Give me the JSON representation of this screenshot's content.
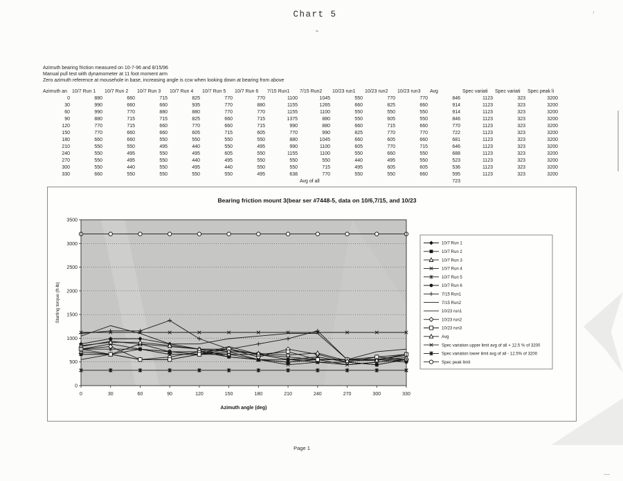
{
  "page": {
    "title": "Chart 5",
    "page_label": "Page 1"
  },
  "notes": [
    "Azimuth bearing friction measured on 10-7-96 and 8/15/96",
    "Manual pull test with dynamometer at 11 foot moment arm",
    "Zero azimuth reference at mousehole in base, increasing angle is ccw when looking down at bearing from above"
  ],
  "table": {
    "headers": [
      "Azimuth an",
      "10/7 Run 1",
      "10/7 Run 2",
      "10/7 Run 3",
      "10/7 Run 4",
      "10/7 Run 5",
      "10/7 Run 6",
      "7/15 Run1",
      "7/15 Run2",
      "10/23 run1",
      "10/23 run2",
      "10/23 run3",
      "Avg",
      "Spec variati",
      "Spec variati",
      "Spec peak li"
    ],
    "rows": [
      [
        0,
        880,
        660,
        715,
        825,
        770,
        770,
        1100,
        1045,
        550,
        770,
        770,
        846,
        1123,
        323,
        3200
      ],
      [
        30,
        990,
        660,
        660,
        935,
        770,
        880,
        1155,
        1265,
        660,
        825,
        660,
        914,
        1123,
        323,
        3200
      ],
      [
        60,
        990,
        770,
        880,
        880,
        770,
        770,
        1155,
        1100,
        550,
        550,
        550,
        914,
        1123,
        323,
        3200
      ],
      [
        90,
        880,
        715,
        715,
        825,
        660,
        715,
        1375,
        880,
        550,
        605,
        550,
        846,
        1123,
        323,
        3200
      ],
      [
        120,
        770,
        715,
        660,
        770,
        660,
        715,
        990,
        880,
        660,
        715,
        660,
        770,
        1123,
        323,
        3200
      ],
      [
        150,
        770,
        660,
        660,
        605,
        715,
        605,
        770,
        990,
        825,
        770,
        770,
        722,
        1123,
        323,
        3200
      ],
      [
        180,
        660,
        660,
        550,
        550,
        550,
        550,
        880,
        1045,
        660,
        605,
        660,
        681,
        1123,
        323,
        3200
      ],
      [
        210,
        550,
        550,
        495,
        440,
        550,
        495,
        990,
        1100,
        605,
        770,
        715,
        646,
        1123,
        323,
        3200
      ],
      [
        240,
        550,
        495,
        550,
        495,
        605,
        550,
        1155,
        1100,
        550,
        660,
        550,
        688,
        1123,
        323,
        3200
      ],
      [
        270,
        550,
        495,
        550,
        440,
        495,
        550,
        550,
        550,
        440,
        495,
        550,
        523,
        1123,
        323,
        3200
      ],
      [
        300,
        550,
        440,
        550,
        495,
        440,
        550,
        550,
        715,
        495,
        605,
        605,
        536,
        1123,
        323,
        3200
      ],
      [
        330,
        660,
        550,
        550,
        550,
        550,
        495,
        638,
        770,
        550,
        550,
        660,
        595,
        1123,
        323,
        3200
      ]
    ],
    "footer_row": [
      "",
      "",
      "",
      "",
      "",
      "",
      "",
      "",
      "Avg of all",
      "",
      "",
      "",
      "723",
      "",
      "",
      ""
    ]
  },
  "chart_data": {
    "type": "line",
    "title": "Bearing friction mount 3(bear ser #7448-5, data on 10/6,7/15, and 10/23",
    "xlabel": "Azimuth angle (deg)",
    "ylabel": "Starting torque (ft-lb)",
    "x": [
      0,
      30,
      60,
      90,
      120,
      150,
      180,
      210,
      240,
      270,
      300,
      330
    ],
    "ylim": [
      0,
      3500
    ],
    "yticks": [
      0,
      500,
      1000,
      1500,
      2000,
      2500,
      3000,
      3500
    ],
    "grid": "dotted-horizontal",
    "plot_bg": "#c6c6c4",
    "line_color": "#161616",
    "legend_position": "right",
    "series": [
      {
        "name": "10/7 Run 1",
        "marker": "filled-diamond",
        "values": [
          880,
          990,
          990,
          880,
          770,
          770,
          660,
          550,
          550,
          550,
          550,
          660
        ]
      },
      {
        "name": "10/7 Run 2",
        "marker": "filled-square",
        "values": [
          660,
          660,
          770,
          715,
          715,
          660,
          660,
          550,
          495,
          495,
          440,
          550
        ]
      },
      {
        "name": "10/7 Run 3",
        "marker": "open-triangle",
        "values": [
          715,
          660,
          880,
          715,
          660,
          660,
          550,
          495,
          550,
          550,
          550,
          550
        ]
      },
      {
        "name": "10/7 Run 4",
        "marker": "x",
        "values": [
          825,
          935,
          880,
          825,
          770,
          605,
          550,
          440,
          495,
          440,
          495,
          550
        ]
      },
      {
        "name": "10/7 Run 5",
        "marker": "asterisk",
        "values": [
          770,
          770,
          770,
          660,
          660,
          715,
          550,
          550,
          605,
          495,
          440,
          550
        ]
      },
      {
        "name": "10/7 Run 6",
        "marker": "filled-circle",
        "values": [
          770,
          880,
          770,
          715,
          715,
          605,
          550,
          495,
          550,
          550,
          550,
          495
        ]
      },
      {
        "name": "7/15 Run1",
        "marker": "plus",
        "values": [
          1100,
          1155,
          1155,
          1375,
          990,
          770,
          880,
          990,
          1155,
          550,
          550,
          638
        ]
      },
      {
        "name": "7/15 Run2",
        "marker": "dash",
        "values": [
          1045,
          1265,
          1100,
          880,
          880,
          990,
          1045,
          1100,
          1100,
          550,
          715,
          770
        ]
      },
      {
        "name": "10/23 run1",
        "marker": "dash",
        "values": [
          550,
          660,
          550,
          550,
          660,
          825,
          660,
          605,
          550,
          440,
          495,
          550
        ]
      },
      {
        "name": "10/23 run2",
        "marker": "open-diamond",
        "values": [
          770,
          825,
          550,
          605,
          715,
          770,
          605,
          770,
          660,
          495,
          605,
          550
        ]
      },
      {
        "name": "10/23 run3",
        "marker": "open-square",
        "values": [
          770,
          660,
          550,
          550,
          660,
          770,
          660,
          715,
          550,
          550,
          605,
          660
        ]
      },
      {
        "name": "Avg",
        "marker": "open-triangle",
        "values": [
          846,
          914,
          914,
          846,
          770,
          722,
          681,
          646,
          688,
          523,
          536,
          595
        ]
      },
      {
        "name": "Spec variation upper limit avg of all + 12.5 % of 3200",
        "marker": "x",
        "values": [
          1123,
          1123,
          1123,
          1123,
          1123,
          1123,
          1123,
          1123,
          1123,
          1123,
          1123,
          1123
        ]
      },
      {
        "name": "Spec variation lower limit avg of all - 12.5% of 3200",
        "marker": "asterisk-bold",
        "values": [
          323,
          323,
          323,
          323,
          323,
          323,
          323,
          323,
          323,
          323,
          323,
          323
        ]
      },
      {
        "name": "Spec peak limit",
        "marker": "open-circle",
        "values": [
          3200,
          3200,
          3200,
          3200,
          3200,
          3200,
          3200,
          3200,
          3200,
          3200,
          3200,
          3200
        ]
      }
    ]
  }
}
